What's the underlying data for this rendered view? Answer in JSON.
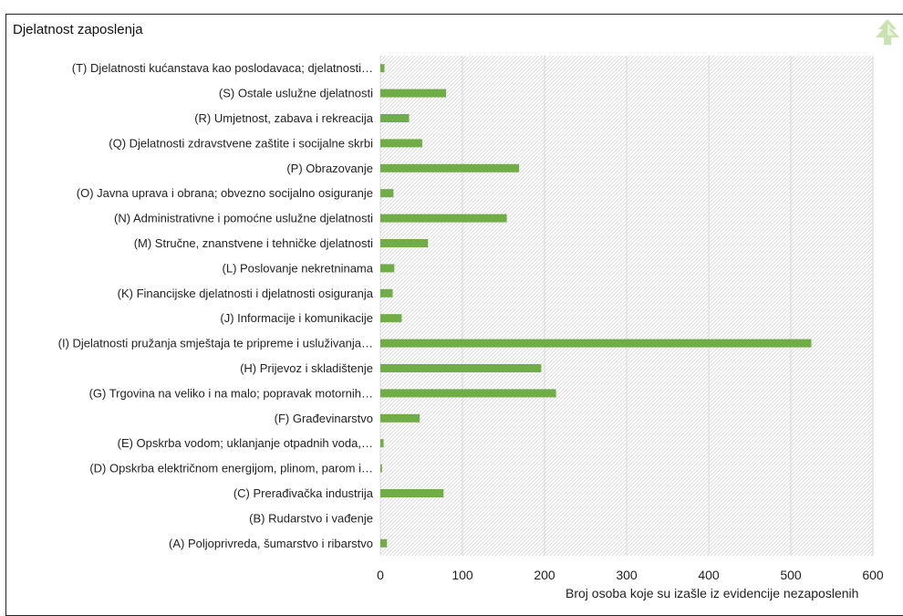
{
  "chart_data": {
    "type": "bar",
    "orientation": "horizontal",
    "title": "Djelatnost zaposlenja",
    "xlabel": "Broj osoba koje su izašle iz evidencije nezaposlenih",
    "xlim": [
      0,
      600
    ],
    "xticks": [
      "0",
      "100",
      "200",
      "300",
      "400",
      "500",
      "600"
    ],
    "grid": true,
    "legend": "none",
    "bar_color": "#70ad47",
    "categories": [
      "(T) Djelatnosti kućanstava kao poslodavaca; djelatnosti…",
      "(S) Ostale uslužne djelatnosti",
      "(R) Umjetnost, zabava i rekreacija",
      "(Q) Djelatnosti zdravstvene zaštite i socijalne skrbi",
      "(P) Obrazovanje",
      "(O) Javna uprava i obrana; obvezno socijalno osiguranje",
      "(N) Administrativne i pomoćne uslužne djelatnosti",
      "(M) Stručne, znanstvene i tehničke djelatnosti",
      "(L) Poslovanje nekretninama",
      "(K) Financijske djelatnosti i djelatnosti osiguranja",
      "(J) Informacije i komunikacije",
      "(I) Djelatnosti pružanja smještaja te pripreme i usluživanja…",
      "(H) Prijevoz i skladištenje",
      "(G) Trgovina na veliko i na malo; popravak motornih…",
      "(F) Građevinarstvo",
      "(E) Opskrba vodom; uklanjanje otpadnih voda,…",
      "(D) Opskrba električnom energijom, plinom, parom i…",
      "(C) Prerađivačka industrija",
      "(B) Rudarstvo i vađenje",
      "(A) Poljoprivreda, šumarstvo i ribarstvo"
    ],
    "values": [
      5,
      80,
      35,
      51,
      169,
      16,
      154,
      58,
      17,
      15,
      26,
      525,
      196,
      214,
      48,
      4,
      2,
      77,
      0,
      8
    ]
  }
}
